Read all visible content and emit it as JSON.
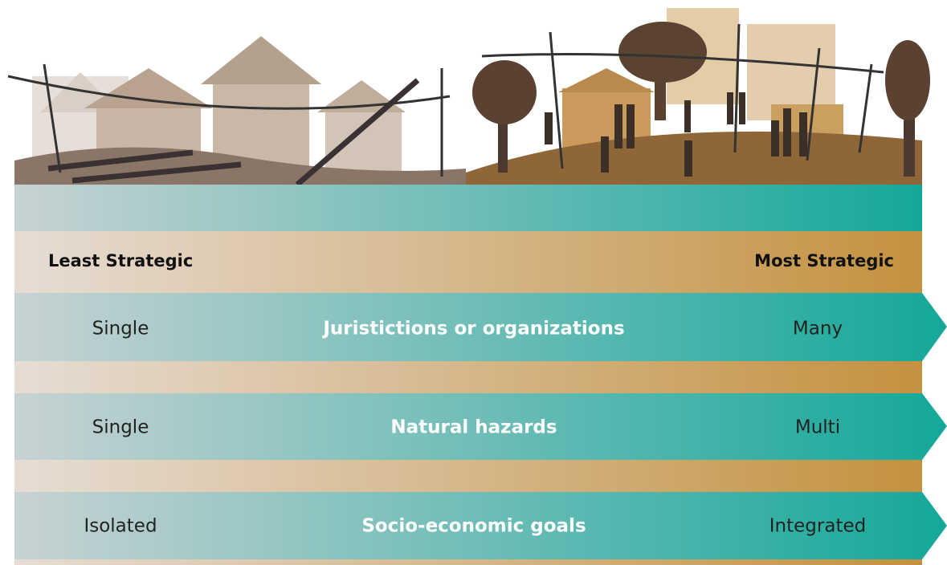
{
  "header": {
    "left": "Least Strategic",
    "right": "Most Strategic"
  },
  "rows": [
    {
      "left": "Single",
      "center": "Juristictions or organizations",
      "right": "Many"
    },
    {
      "left": "Single",
      "center": "Natural hazards",
      "right": "Multi"
    },
    {
      "left": "Isolated",
      "center": "Socio-economic goals",
      "right": "Integrated"
    }
  ]
}
